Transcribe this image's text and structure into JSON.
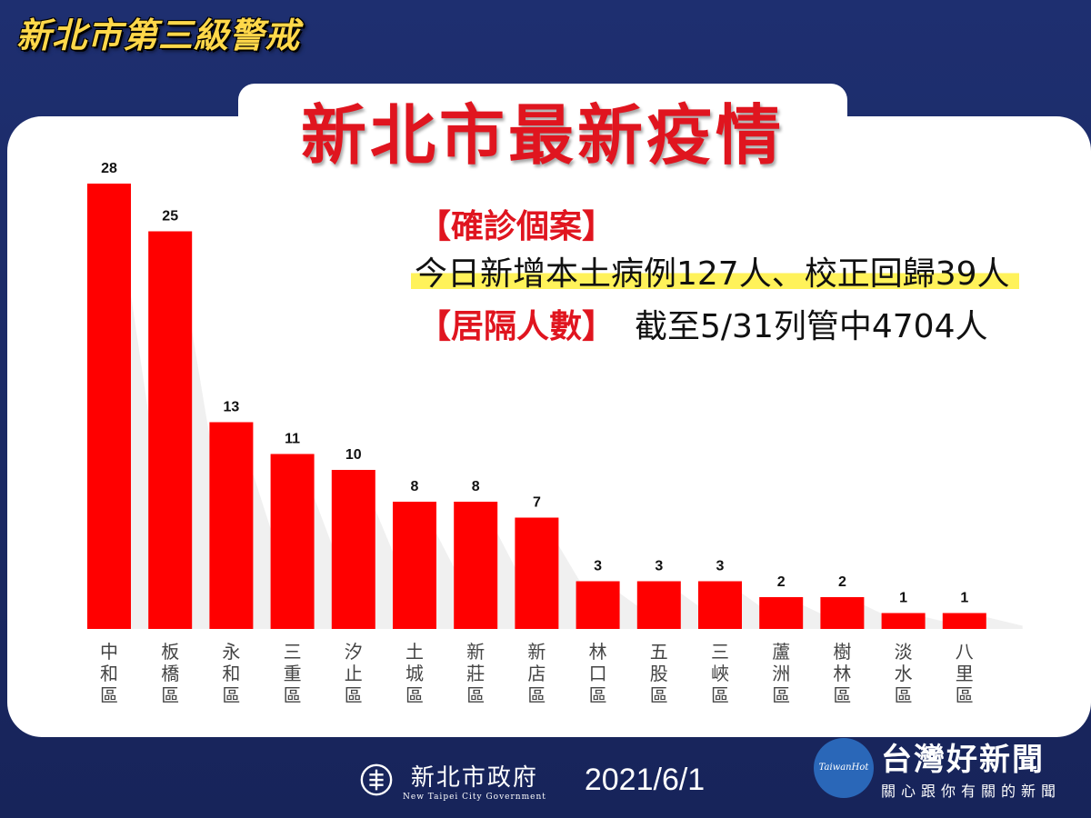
{
  "banner": "新北市第三級警戒",
  "title": "新北市最新疫情",
  "info": {
    "confirmed_label": "【確診個案】",
    "confirmed_text": "今日新增本土病例127人、校正回歸39人",
    "quarantine_label": "【居隔人數】",
    "quarantine_text": "截至5/31列管中4704人"
  },
  "footer": {
    "gov_name": "新北市政府",
    "gov_name_en": "New Taipei City Government",
    "date": "2021/6/1"
  },
  "watermark": {
    "logo_text": "TaiwanHot",
    "name": "台灣好新聞",
    "slogan": "關心跟你有關的新聞"
  },
  "colors": {
    "bar": "#ff0000",
    "accent_red": "#e0151f",
    "background": "#1b2a66",
    "highlight": "#fff25a",
    "banner": "#ffd84a"
  },
  "chart_data": {
    "type": "bar",
    "title": "",
    "xlabel": "",
    "ylabel": "",
    "categories": [
      "中和區",
      "板橋區",
      "永和區",
      "三重區",
      "汐止區",
      "土城區",
      "新莊區",
      "新店區",
      "林口區",
      "五股區",
      "三峽區",
      "蘆洲區",
      "樹林區",
      "淡水區",
      "八里區"
    ],
    "values": [
      28,
      25,
      13,
      11,
      10,
      8,
      8,
      7,
      3,
      3,
      3,
      2,
      2,
      1,
      1
    ],
    "ylim": [
      0,
      28
    ],
    "grid": false,
    "data_labels": true
  }
}
